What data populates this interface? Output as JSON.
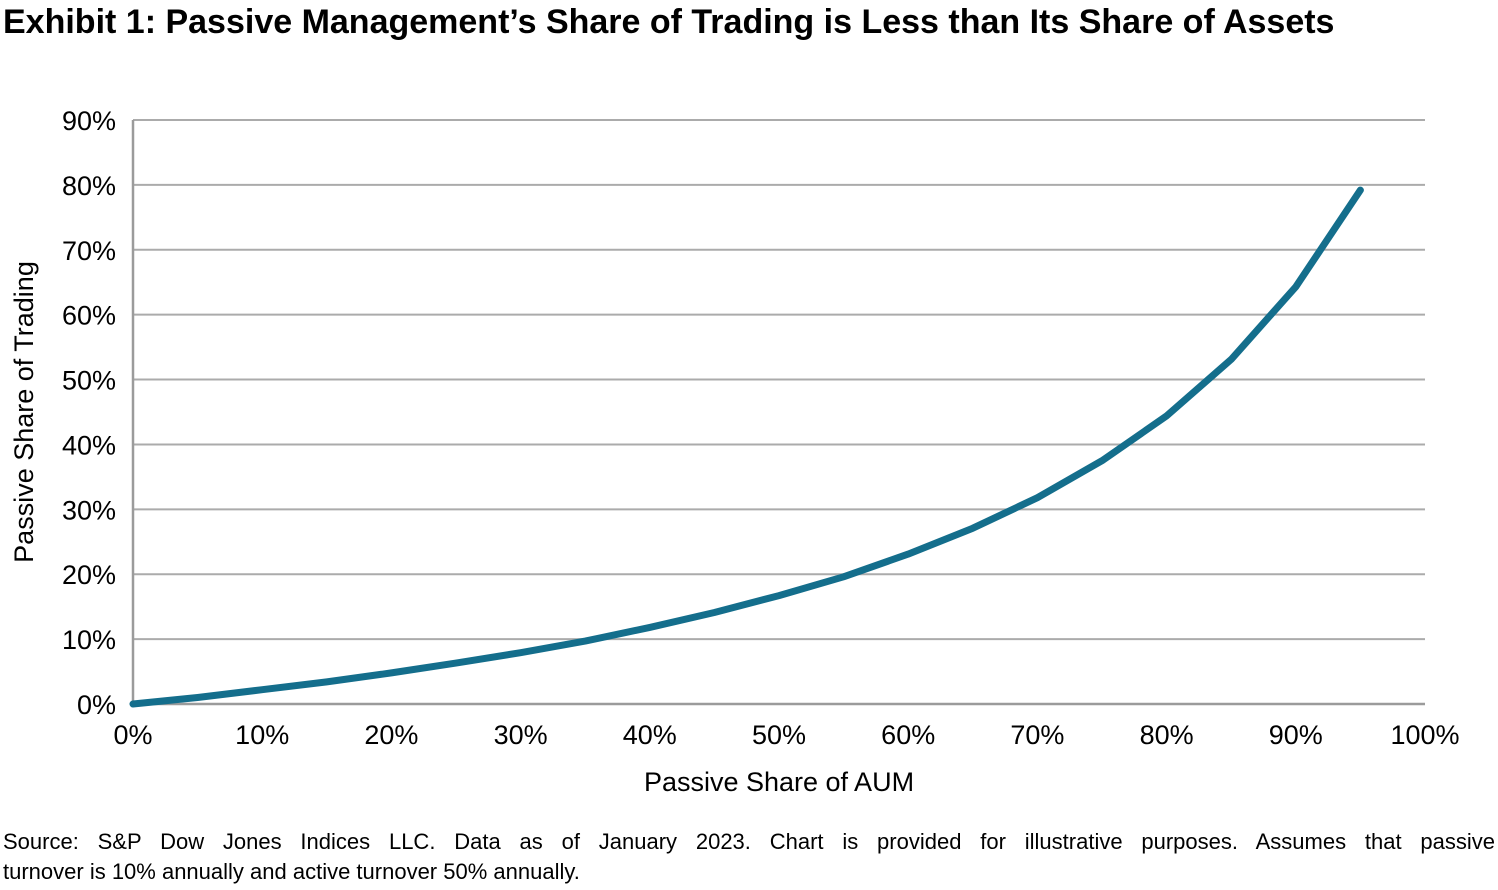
{
  "chart_data": {
    "type": "line",
    "title": "Exhibit 1: Passive Management’s Share of Trading is Less than Its Share of Assets",
    "xlabel": "Passive Share of AUM",
    "ylabel": "Passive Share of Trading",
    "x_ticks": [
      "0%",
      "10%",
      "20%",
      "30%",
      "40%",
      "50%",
      "60%",
      "70%",
      "80%",
      "90%",
      "100%"
    ],
    "y_ticks": [
      "0%",
      "10%",
      "20%",
      "30%",
      "40%",
      "50%",
      "60%",
      "70%",
      "80%",
      "90%"
    ],
    "xlim": [
      0,
      100
    ],
    "ylim": [
      0,
      90
    ],
    "grid": "horizontal-only",
    "legend": "none",
    "line_color": "#146E8C",
    "gridline_color": "#ABABAB",
    "axis_color": "#9B9B9B",
    "series": [
      {
        "name": "Passive Share of Trading",
        "x": [
          0,
          5,
          10,
          15,
          20,
          25,
          30,
          35,
          40,
          45,
          50,
          55,
          60,
          65,
          70,
          75,
          80,
          85,
          90,
          95
        ],
        "y": [
          0,
          1.0,
          2.2,
          3.4,
          4.8,
          6.3,
          7.9,
          9.7,
          11.8,
          14.1,
          16.7,
          19.6,
          23.1,
          27.1,
          31.8,
          37.5,
          44.4,
          53.1,
          64.3,
          79.2
        ]
      }
    ]
  },
  "source": {
    "line1": "Source: S&P Dow Jones Indices LLC. Data as of January 2023. Chart is provided for illustrative purposes. Assumes that passive",
    "line2": "turnover is 10% annually and active turnover 50% annually."
  }
}
